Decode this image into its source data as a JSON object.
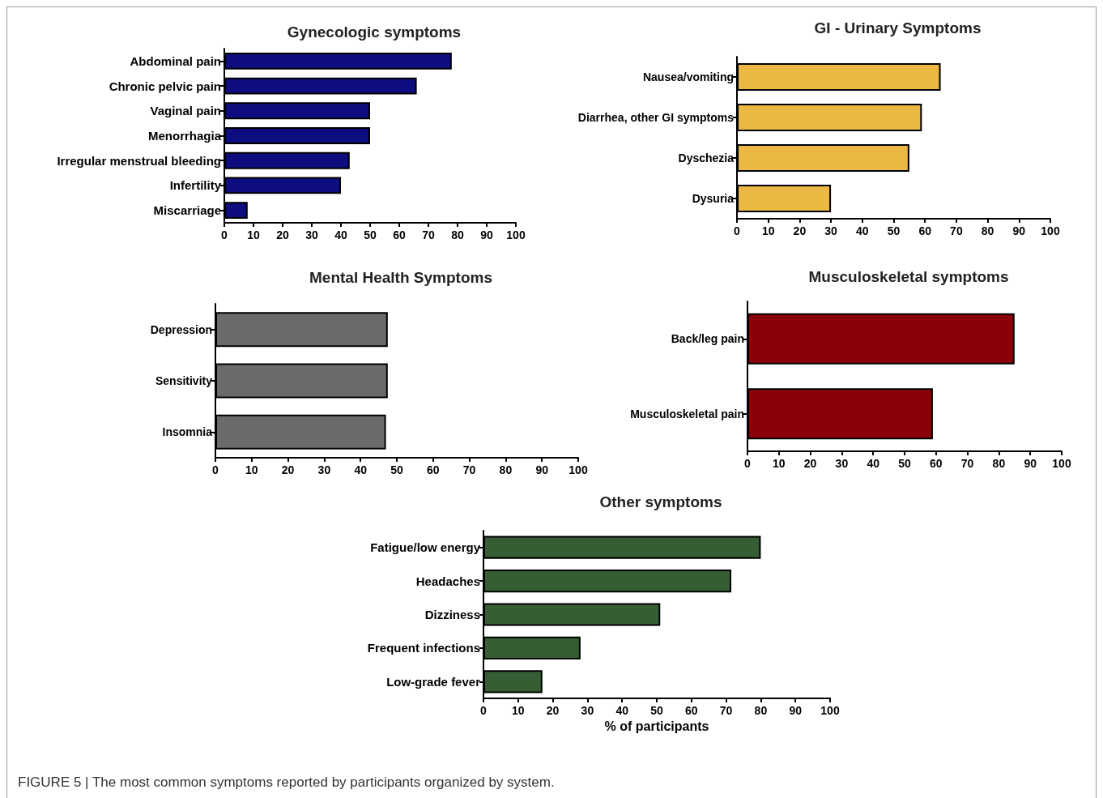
{
  "chart_data": [
    {
      "type": "bar",
      "orientation": "horizontal",
      "title": "Gynecologic symptoms",
      "categories": [
        "Abdominal pain",
        "Chronic pelvic pain",
        "Vaginal pain",
        "Menorrhagia",
        "Irregular menstrual bleeding",
        "Infertility",
        "Miscarriage"
      ],
      "values": [
        78,
        66,
        50,
        50,
        43,
        40,
        8
      ],
      "color": "#0d0d80",
      "xlim": [
        0,
        100
      ],
      "xticks": [
        0,
        10,
        20,
        30,
        40,
        50,
        60,
        70,
        80,
        90,
        100
      ],
      "grid": false
    },
    {
      "type": "bar",
      "orientation": "horizontal",
      "title": "GI - Urinary Symptoms",
      "categories": [
        "Nausea/vomiting",
        "Diarrhea, other GI symptoms",
        "Dyschezia",
        "Dysuria"
      ],
      "values": [
        65,
        59,
        55,
        30
      ],
      "color": "#ebb843",
      "xlim": [
        0,
        100
      ],
      "xticks": [
        0,
        10,
        20,
        30,
        40,
        50,
        60,
        70,
        80,
        90,
        100
      ],
      "grid": false
    },
    {
      "type": "bar",
      "orientation": "horizontal",
      "title": "Mental Health Symptoms",
      "categories": [
        "Depression",
        "Sensitivity",
        "Insomnia"
      ],
      "values": [
        47.5,
        47.5,
        47
      ],
      "color": "#6b6b6b",
      "xlim": [
        0,
        100
      ],
      "xticks": [
        0,
        10,
        20,
        30,
        40,
        50,
        60,
        70,
        80,
        90,
        100
      ],
      "grid": false
    },
    {
      "type": "bar",
      "orientation": "horizontal",
      "title": "Musculoskeletal symptoms",
      "categories": [
        "Back/leg pain",
        "Musculoskeletal pain"
      ],
      "values": [
        85,
        59
      ],
      "color": "#8b0008",
      "xlim": [
        0,
        100
      ],
      "xticks": [
        0,
        10,
        20,
        30,
        40,
        50,
        60,
        70,
        80,
        90,
        100
      ],
      "grid": false
    },
    {
      "type": "bar",
      "orientation": "horizontal",
      "title": "Other symptoms",
      "xlabel": "% of participants",
      "categories": [
        "Fatigue/low energy",
        "Headaches",
        "Dizziness",
        "Frequent infections",
        "Low-grade fever"
      ],
      "values": [
        80,
        71.5,
        51,
        28,
        17
      ],
      "color": "#355e35",
      "xlim": [
        0,
        100
      ],
      "xticks": [
        0,
        10,
        20,
        30,
        40,
        50,
        60,
        70,
        80,
        90,
        100
      ],
      "grid": false,
      "annotations": [
        "FIGURE 5 | The most common symptoms reported by participants organized by system."
      ]
    }
  ]
}
